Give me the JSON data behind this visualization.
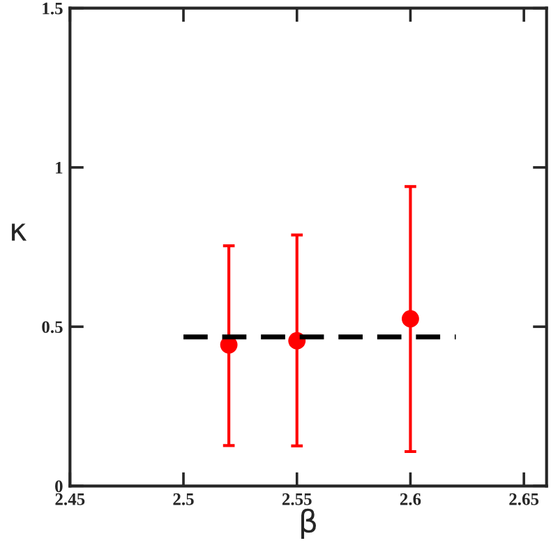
{
  "chart_data": {
    "type": "scatter",
    "xlabel": "β",
    "ylabel": "κ",
    "xlim": [
      2.45,
      2.66
    ],
    "xticks": [
      2.45,
      2.5,
      2.55,
      2.6,
      2.65
    ],
    "ylim": [
      0,
      1.5
    ],
    "yticks": [
      0,
      0.5,
      1,
      1.5
    ],
    "grid": false,
    "legend": false,
    "marker": "circle",
    "series": [
      {
        "color": "#ff0000",
        "x": [
          2.52,
          2.55,
          2.6
        ],
        "values": [
          0.443,
          0.456,
          0.525
        ],
        "errors": [
          [
            0.127,
            0.754
          ],
          [
            0.126,
            0.788
          ],
          [
            0.108,
            0.94
          ]
        ]
      },
      {
        "type": "line",
        "color": "#000000",
        "line_style": "dashed",
        "marker": "none",
        "x": [
          2.5,
          2.62
        ],
        "values": [
          0.468,
          0.468
        ]
      }
    ]
  }
}
